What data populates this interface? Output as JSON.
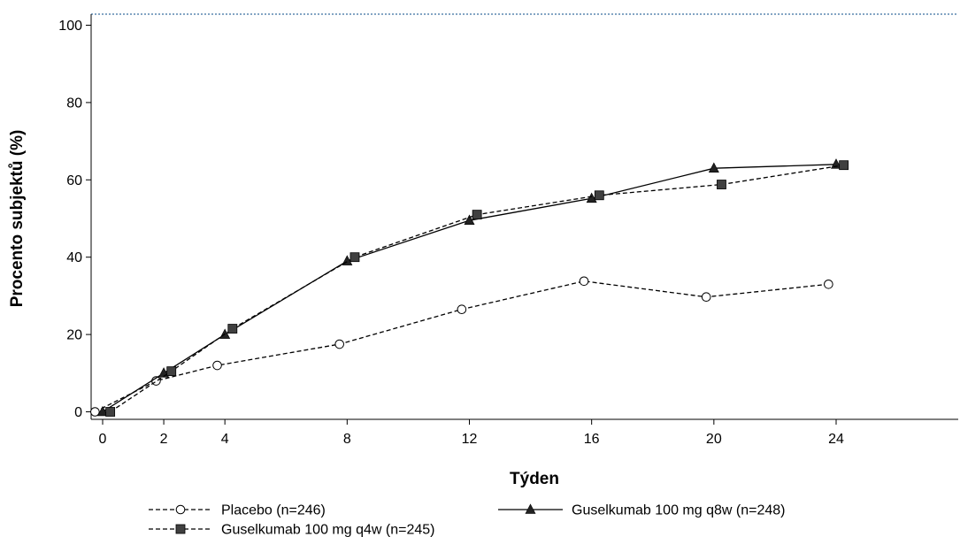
{
  "chart_data": {
    "type": "line",
    "title": "",
    "xlabel": "Týden",
    "ylabel": "Procento subjektů (%)",
    "xlim": [
      -0.3,
      27.5
    ],
    "ylim": [
      -2,
      103
    ],
    "x_ticks": [
      "0",
      "2",
      "4",
      "8",
      "12",
      "16",
      "20",
      "24"
    ],
    "x_tick_values": [
      0,
      2,
      4,
      8,
      12,
      16,
      20,
      24
    ],
    "y_ticks": [
      "0",
      "20",
      "40",
      "60",
      "80",
      "100"
    ],
    "y_tick_values": [
      0,
      20,
      40,
      60,
      80,
      100
    ],
    "grid": false,
    "legend_position": "bottom",
    "series": [
      {
        "name": "Placebo (n=246)",
        "marker": "open-circle",
        "line_style": "dashed",
        "color": "#000000",
        "x": [
          -0.25,
          1.75,
          3.75,
          7.75,
          11.75,
          15.75,
          19.75,
          23.75
        ],
        "y": [
          0,
          8,
          12,
          17.5,
          26.5,
          33.8,
          29.7,
          33
        ]
      },
      {
        "name": "Guselkumab 100 mg q8w (n=248)",
        "marker": "filled-triangle",
        "line_style": "solid",
        "color": "#000000",
        "x": [
          0,
          2,
          4,
          8,
          12,
          16,
          20,
          24
        ],
        "y": [
          0,
          10,
          20,
          39,
          49.5,
          55.2,
          63,
          64
        ]
      },
      {
        "name": "Guselkumab 100 mg q4w (n=245)",
        "marker": "filled-square",
        "line_style": "dashed",
        "color": "#000000",
        "x": [
          0.25,
          2.25,
          4.25,
          8.25,
          12.25,
          16.25,
          20.25,
          24.25
        ],
        "y": [
          0,
          10.5,
          21.5,
          40,
          51,
          56,
          58.8,
          63.8
        ]
      }
    ]
  }
}
